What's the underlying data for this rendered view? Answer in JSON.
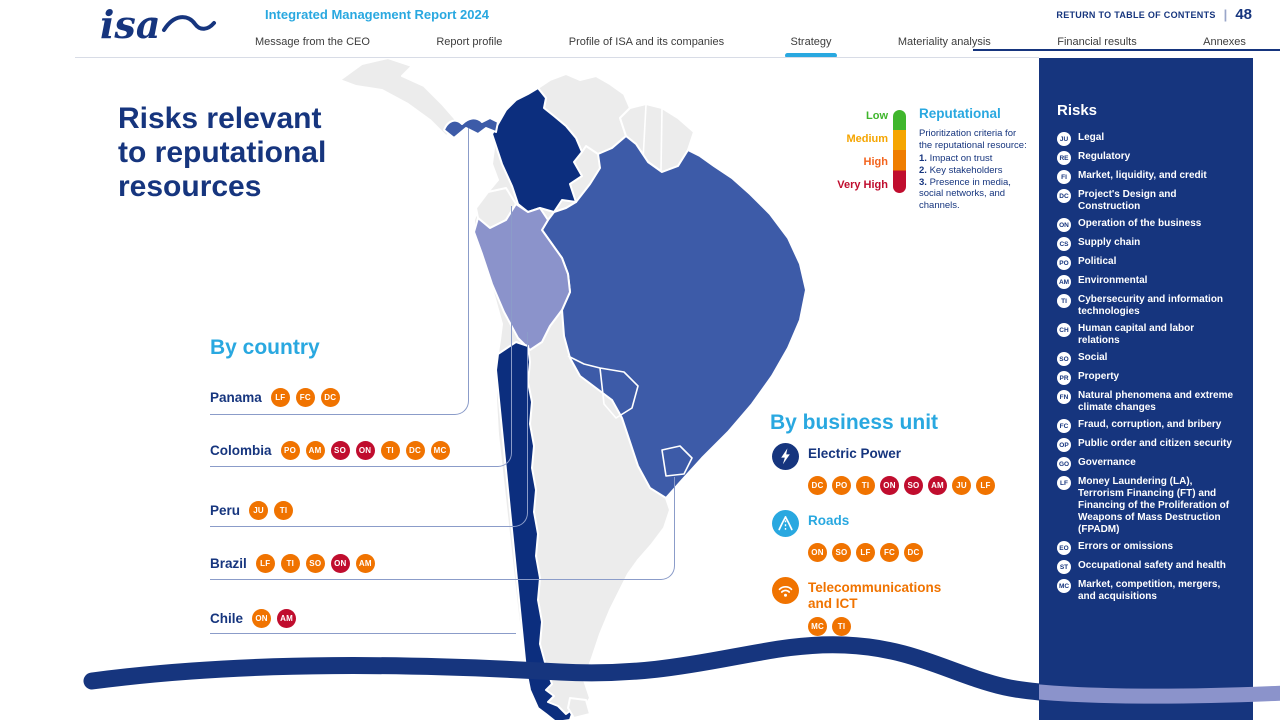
{
  "header": {
    "logo": "isa",
    "report_title": "Integrated Management Report 2024",
    "return_link": "RETURN TO TABLE OF CONTENTS",
    "page_number": "48",
    "nav": [
      {
        "label": "Message from the CEO",
        "active": false
      },
      {
        "label": "Report profile",
        "active": false
      },
      {
        "label": "Profile of ISA and its companies",
        "active": false
      },
      {
        "label": "Strategy",
        "active": true
      },
      {
        "label": "Materiality analysis",
        "active": false
      },
      {
        "label": "Financial results",
        "active": false
      },
      {
        "label": "Annexes",
        "active": false
      }
    ]
  },
  "main": {
    "title_lines": [
      "Risks relevant",
      "to reputational",
      "resources"
    ],
    "legend": {
      "title": "Reputational",
      "levels": [
        {
          "label": "Low",
          "color": "#3fb62c"
        },
        {
          "label": "Medium",
          "color": "#f5a500"
        },
        {
          "label": "High",
          "color": "#f3641e"
        },
        {
          "label": "Very High",
          "color": "#c00d2e"
        }
      ],
      "intro": "Prioritization criteria for the reputational resource:",
      "criteria": [
        {
          "num": "1.",
          "text": "Impact on trust"
        },
        {
          "num": "2.",
          "text": "Key stakeholders"
        },
        {
          "num": "3.",
          "text": "Presence in media, social networks, and channels."
        }
      ]
    },
    "by_country": {
      "heading": "By country",
      "countries": [
        {
          "name": "Panama",
          "risks": [
            {
              "code": "LF",
              "level": "high"
            },
            {
              "code": "FC",
              "level": "high"
            },
            {
              "code": "DC",
              "level": "high"
            }
          ]
        },
        {
          "name": "Colombia",
          "risks": [
            {
              "code": "PO",
              "level": "high"
            },
            {
              "code": "AM",
              "level": "high"
            },
            {
              "code": "SO",
              "level": "very-high"
            },
            {
              "code": "ON",
              "level": "very-high"
            },
            {
              "code": "TI",
              "level": "high"
            },
            {
              "code": "DC",
              "level": "high"
            },
            {
              "code": "MC",
              "level": "high"
            }
          ]
        },
        {
          "name": "Peru",
          "risks": [
            {
              "code": "JU",
              "level": "high"
            },
            {
              "code": "TI",
              "level": "high"
            }
          ]
        },
        {
          "name": "Brazil",
          "risks": [
            {
              "code": "LF",
              "level": "high"
            },
            {
              "code": "TI",
              "level": "high"
            },
            {
              "code": "SO",
              "level": "high"
            },
            {
              "code": "ON",
              "level": "very-high"
            },
            {
              "code": "AM",
              "level": "high"
            }
          ]
        },
        {
          "name": "Chile",
          "risks": [
            {
              "code": "ON",
              "level": "high"
            },
            {
              "code": "AM",
              "level": "very-high"
            }
          ]
        }
      ]
    },
    "by_business_unit": {
      "heading": "By business unit",
      "units": [
        {
          "name": "Electric Power",
          "icon": "lightning-icon",
          "theme": "navy",
          "risks": [
            {
              "code": "DC",
              "level": "high"
            },
            {
              "code": "PO",
              "level": "high"
            },
            {
              "code": "TI",
              "level": "high"
            },
            {
              "code": "ON",
              "level": "very-high"
            },
            {
              "code": "SO",
              "level": "very-high"
            },
            {
              "code": "AM",
              "level": "very-high"
            },
            {
              "code": "JU",
              "level": "high"
            },
            {
              "code": "LF",
              "level": "high"
            }
          ]
        },
        {
          "name": "Roads",
          "icon": "road-icon",
          "theme": "lightblue",
          "risks": [
            {
              "code": "ON",
              "level": "high"
            },
            {
              "code": "SO",
              "level": "high"
            },
            {
              "code": "LF",
              "level": "high"
            },
            {
              "code": "FC",
              "level": "high"
            },
            {
              "code": "DC",
              "level": "high"
            }
          ]
        },
        {
          "name": "Telecommunications and ICT",
          "icon": "wifi-icon",
          "theme": "orange",
          "risks": [
            {
              "code": "MC",
              "level": "high"
            },
            {
              "code": "TI",
              "level": "high"
            }
          ]
        }
      ]
    }
  },
  "sidebar": {
    "heading": "Risks",
    "items": [
      {
        "code": "JU",
        "label": "Legal"
      },
      {
        "code": "RE",
        "label": "Regulatory"
      },
      {
        "code": "FI",
        "label": "Market, liquidity, and credit"
      },
      {
        "code": "DC",
        "label": "Project's Design and Construction"
      },
      {
        "code": "ON",
        "label": "Operation of the business"
      },
      {
        "code": "CS",
        "label": "Supply chain"
      },
      {
        "code": "PO",
        "label": "Political"
      },
      {
        "code": "AM",
        "label": "Environmental"
      },
      {
        "code": "TI",
        "label": "Cybersecurity and information technologies"
      },
      {
        "code": "CH",
        "label": "Human capital and labor relations"
      },
      {
        "code": "SO",
        "label": "Social"
      },
      {
        "code": "PR",
        "label": "Property"
      },
      {
        "code": "FN",
        "label": "Natural phenomena and extreme climate changes"
      },
      {
        "code": "FC",
        "label": "Fraud, corruption, and bribery"
      },
      {
        "code": "OP",
        "label": "Public order and citizen security"
      },
      {
        "code": "GO",
        "label": "Governance"
      },
      {
        "code": "LF",
        "label": "Money Laundering (LA), Terrorism Financing (FT) and Financing of the Proliferation of Weapons of Mass Destruction (FPADM)"
      },
      {
        "code": "EO",
        "label": "Errors or omissions"
      },
      {
        "code": "ST",
        "label": "Occupational safety and health"
      },
      {
        "code": "MC",
        "label": "Market, competition, mergers, and acquisitions"
      }
    ]
  },
  "colors": {
    "navy": "#16357e",
    "accent_blue": "#29a8e0",
    "orange": "#f07300",
    "crimson": "#c00d2e",
    "map_blue": "#3d5ba8",
    "map_navy": "#0c2e7e",
    "map_lavender": "#8b93cb",
    "map_gray": "#ececec"
  }
}
